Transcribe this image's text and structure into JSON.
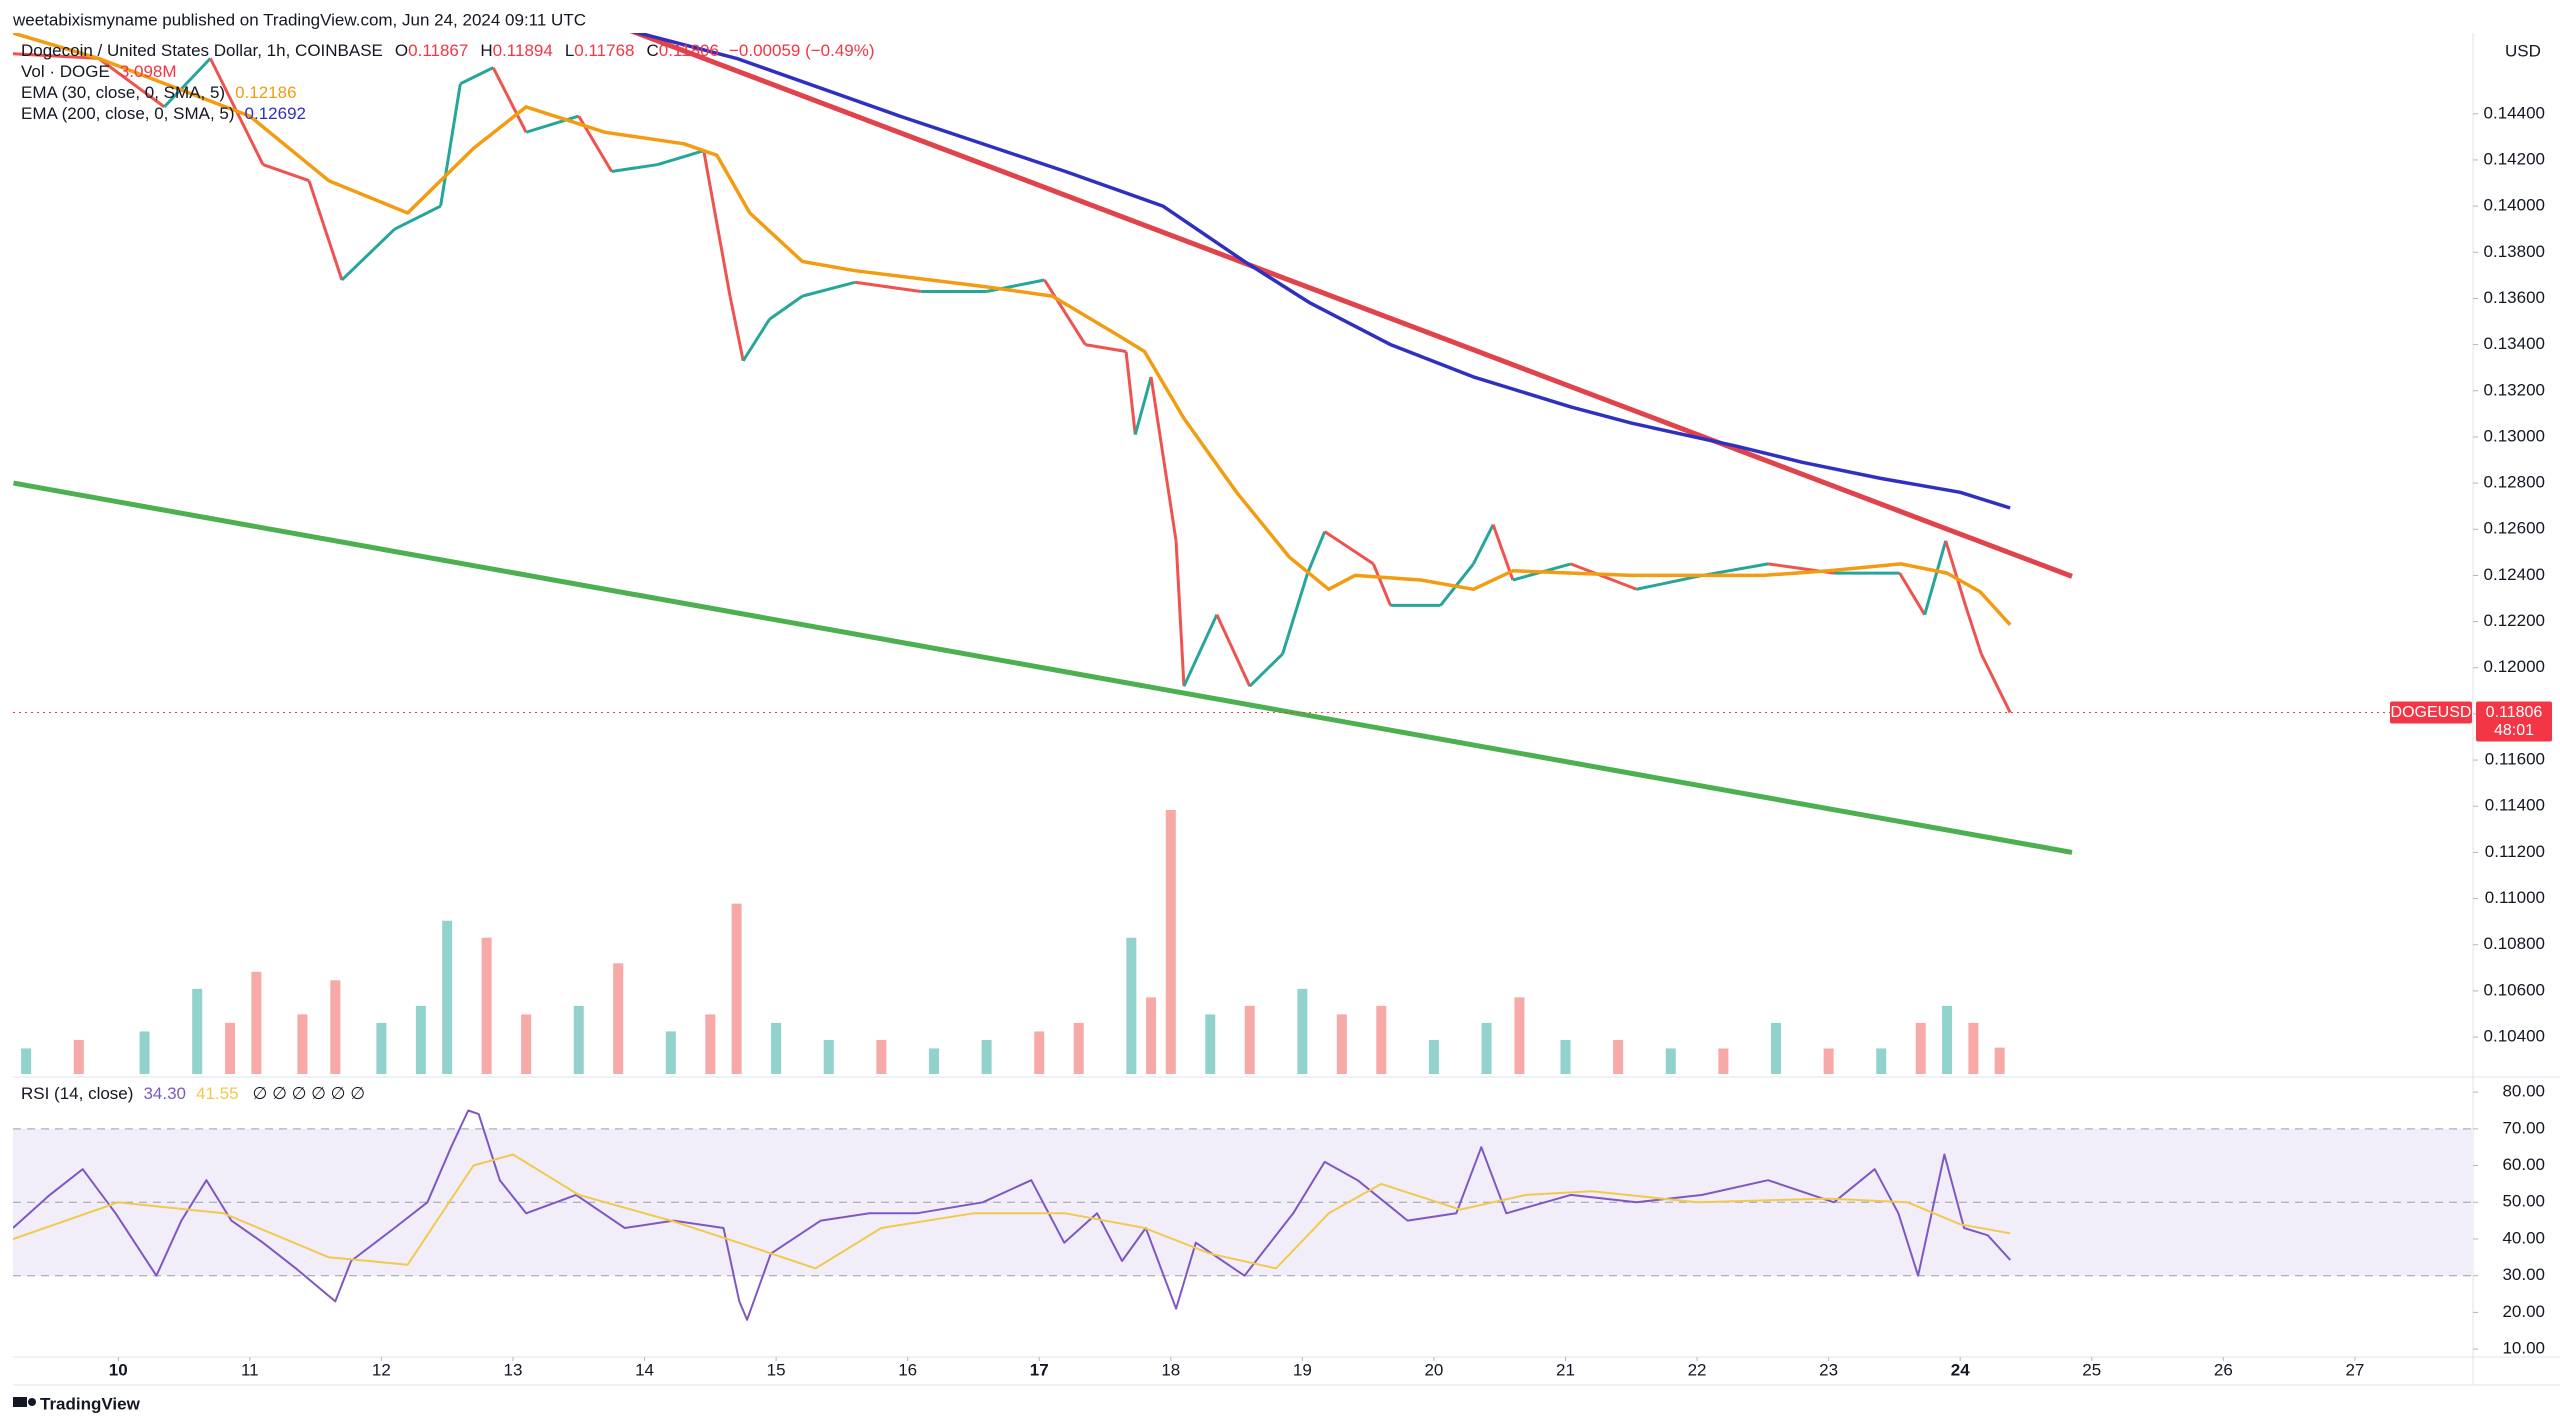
{
  "header": {
    "publisher": "weetabixismyname published on TradingView.com, Jun 24, 2024 09:11 UTC"
  },
  "footer": {
    "brand": "TradingView"
  },
  "chart_data": [
    {
      "type": "line",
      "title": "Dogecoin / United States Dollar, 1h, COINBASE",
      "ohlc": [
        [
          "O",
          "0.11867"
        ],
        [
          "H",
          "0.11894"
        ],
        [
          "L",
          "0.11768"
        ],
        [
          "C",
          "0.11806"
        ]
      ],
      "change": "−0.00059 (−0.49%)",
      "y_unit": "USD",
      "xlim": [
        9.2,
        27.89
      ],
      "xticks": [
        10,
        11,
        12,
        13,
        14,
        15,
        16,
        17,
        18,
        19,
        20,
        21,
        22,
        23,
        24,
        25,
        26,
        27
      ],
      "xticks_bold": [
        10,
        17,
        24
      ],
      "ylim": [
        0.1024,
        0.1475
      ],
      "yticks": [
        {
          "value": 0.104,
          "label": "0.10400"
        },
        {
          "value": 0.106,
          "label": "0.10600"
        },
        {
          "value": 0.108,
          "label": "0.10800"
        },
        {
          "value": 0.11,
          "label": "0.11000"
        },
        {
          "value": 0.112,
          "label": "0.11200"
        },
        {
          "value": 0.114,
          "label": "0.11400"
        },
        {
          "value": 0.116,
          "label": "0.11600"
        },
        {
          "value": 0.118,
          "label": "0.11800"
        },
        {
          "value": 0.12,
          "label": "0.12000"
        },
        {
          "value": 0.122,
          "label": "0.12200"
        },
        {
          "value": 0.124,
          "label": "0.12400"
        },
        {
          "value": 0.126,
          "label": "0.12600"
        },
        {
          "value": 0.128,
          "label": "0.12800"
        },
        {
          "value": 0.13,
          "label": "0.13000"
        },
        {
          "value": 0.132,
          "label": "0.13200"
        },
        {
          "value": 0.134,
          "label": "0.13400"
        },
        {
          "value": 0.136,
          "label": "0.13600"
        },
        {
          "value": 0.138,
          "label": "0.13800"
        },
        {
          "value": 0.14,
          "label": "0.14000"
        },
        {
          "value": 0.142,
          "label": "0.14200"
        },
        {
          "value": 0.144,
          "label": "0.14400"
        }
      ],
      "series": [
        {
          "name": "DOGEUSD",
          "up_color": "#26a69a",
          "down_color": "#ef5350",
          "value_label": "0.11806",
          "countdown": "48:01",
          "tag_color": "#f23645",
          "x": [
            9.2,
            9.85,
            10.35,
            10.7,
            11.1,
            11.45,
            11.7,
            12.1,
            12.45,
            12.6,
            12.85,
            13.1,
            13.5,
            13.75,
            14.1,
            14.45,
            14.65,
            14.75,
            14.95,
            15.2,
            15.6,
            16.1,
            16.6,
            17.04,
            17.35,
            17.66,
            17.73,
            17.85,
            18.04,
            18.1,
            18.35,
            18.6,
            18.85,
            19.04,
            19.17,
            19.54,
            19.67,
            20.05,
            20.3,
            20.45,
            20.6,
            21.04,
            21.54,
            22.04,
            22.54,
            23.04,
            23.54,
            23.73,
            23.89,
            24.04,
            24.16,
            24.38
          ],
          "values": [
            0.1466,
            0.1464,
            0.1443,
            0.1464,
            0.1418,
            0.1411,
            0.1368,
            0.139,
            0.14,
            0.1453,
            0.146,
            0.1432,
            0.1439,
            0.1415,
            0.1418,
            0.1424,
            0.1361,
            0.1333,
            0.1351,
            0.1361,
            0.1367,
            0.1363,
            0.1363,
            0.1368,
            0.134,
            0.1337,
            0.1301,
            0.1326,
            0.1255,
            0.1192,
            0.1223,
            0.1192,
            0.1206,
            0.1241,
            0.1259,
            0.1245,
            0.1227,
            0.1227,
            0.1245,
            0.1262,
            0.1238,
            0.1245,
            0.1234,
            0.124,
            0.1245,
            0.1241,
            0.1241,
            0.1223,
            0.1255,
            0.1227,
            0.1206,
            0.11806
          ]
        },
        {
          "name": "EMA (30, close, 0, SMA, 5)",
          "color": "#f39c12",
          "value_label": "0.12186",
          "x": [
            9.2,
            9.85,
            11,
            11.6,
            12.2,
            12.7,
            13.1,
            13.7,
            14.3,
            14.55,
            14.8,
            15.2,
            15.6,
            16.6,
            17.1,
            17.6,
            17.8,
            18.1,
            18.5,
            18.9,
            19.2,
            19.4,
            19.9,
            20.3,
            20.6,
            21.05,
            21.5,
            22.05,
            22.5,
            23.0,
            23.55,
            23.9,
            24.15,
            24.38
          ],
          "values": [
            0.1475,
            0.1464,
            0.1439,
            0.1411,
            0.1397,
            0.1425,
            0.1443,
            0.1432,
            0.1427,
            0.1422,
            0.1397,
            0.1376,
            0.1372,
            0.1365,
            0.1361,
            0.1344,
            0.1337,
            0.1308,
            0.1276,
            0.1248,
            0.1234,
            0.124,
            0.1238,
            0.1234,
            0.1242,
            0.1241,
            0.124,
            0.124,
            0.124,
            0.1242,
            0.1245,
            0.1241,
            0.1233,
            0.12186
          ]
        },
        {
          "name": "EMA (200, close, 0, SMA, 5)",
          "color": "#3030c0",
          "value_label": "0.12692",
          "x": [
            13.89,
            14.7,
            15.94,
            17.2,
            17.94,
            18.56,
            19.06,
            19.67,
            20.3,
            21.04,
            21.5,
            22.3,
            22.8,
            23.4,
            24.0,
            24.38
          ],
          "values": [
            0.1476,
            0.1464,
            0.1439,
            0.1415,
            0.14,
            0.1376,
            0.1358,
            0.134,
            0.1326,
            0.1313,
            0.1306,
            0.1296,
            0.1289,
            0.1282,
            0.1276,
            0.12692
          ]
        }
      ],
      "trendlines": [
        {
          "color": "#e0434b",
          "x": [
            13.89,
            24.85
          ],
          "values": [
            0.14761,
            0.12396
          ]
        },
        {
          "color": "#4caf50",
          "x": [
            9.204,
            24.85
          ],
          "values": [
            0.128,
            0.112
          ]
        }
      ],
      "volume": {
        "name": "Vol · DOGE",
        "value_label": "3.098M",
        "x": [
          9.3,
          9.7,
          10.2,
          10.6,
          10.85,
          11.05,
          11.4,
          11.65,
          12.0,
          12.3,
          12.5,
          12.8,
          13.1,
          13.5,
          13.8,
          14.2,
          14.5,
          14.7,
          15.0,
          15.4,
          15.8,
          16.2,
          16.6,
          17.0,
          17.3,
          17.7,
          17.85,
          18.0,
          18.3,
          18.6,
          19.0,
          19.3,
          19.6,
          20.0,
          20.4,
          20.65,
          21.0,
          21.4,
          21.8,
          22.2,
          22.6,
          23.0,
          23.4,
          23.7,
          23.9,
          24.1,
          24.3
        ],
        "values": [
          3,
          4,
          5,
          10,
          6,
          12,
          7,
          11,
          6,
          8,
          18,
          16,
          7,
          8,
          13,
          5,
          7,
          20,
          6,
          4,
          4,
          3,
          4,
          5,
          6,
          16,
          9,
          31,
          7,
          8,
          10,
          7,
          8,
          4,
          6,
          9,
          4,
          4,
          3,
          3,
          6,
          3,
          3,
          6,
          8,
          6,
          3.098
        ],
        "colors": [
          "#26a69a",
          "#ef5350",
          "#26a69a",
          "#26a69a",
          "#ef5350",
          "#ef5350",
          "#ef5350",
          "#ef5350",
          "#26a69a",
          "#26a69a",
          "#26a69a",
          "#ef5350",
          "#ef5350",
          "#26a69a",
          "#ef5350",
          "#26a69a",
          "#ef5350",
          "#ef5350",
          "#26a69a",
          "#26a69a",
          "#ef5350",
          "#26a69a",
          "#26a69a",
          "#ef5350",
          "#ef5350",
          "#26a69a",
          "#ef5350",
          "#ef5350",
          "#26a69a",
          "#ef5350",
          "#26a69a",
          "#ef5350",
          "#ef5350",
          "#26a69a",
          "#26a69a",
          "#ef5350",
          "#26a69a",
          "#ef5350",
          "#26a69a",
          "#ef5350",
          "#26a69a",
          "#ef5350",
          "#26a69a",
          "#ef5350",
          "#26a69a",
          "#ef5350",
          "#ef5350"
        ]
      }
    },
    {
      "type": "line",
      "title": "RSI (14, close)",
      "status_icons": "∅ ∅ ∅ ∅ ∅ ∅",
      "xlim": [
        9.2,
        27.89
      ],
      "ylim": [
        8.4,
        83.3
      ],
      "yticks": [
        {
          "value": 10,
          "label": "10.00"
        },
        {
          "value": 20,
          "label": "20.00"
        },
        {
          "value": 30,
          "label": "30.00"
        },
        {
          "value": 40,
          "label": "40.00"
        },
        {
          "value": 50,
          "label": "50.00"
        },
        {
          "value": 60,
          "label": "60.00"
        },
        {
          "value": 70,
          "label": "70.00"
        },
        {
          "value": 80,
          "label": "80.00"
        }
      ],
      "bands": {
        "upper": 70,
        "middle": 50,
        "lower": 30,
        "color": "#7e57c2"
      },
      "series": [
        {
          "color": "#7e57c2",
          "value_label": "34.30",
          "x": [
            9.2,
            9.48,
            9.73,
            9.98,
            10.29,
            10.48,
            10.67,
            10.86,
            11.1,
            11.35,
            11.65,
            11.77,
            12.1,
            12.35,
            12.53,
            12.66,
            12.74,
            12.9,
            13.1,
            13.48,
            13.85,
            14.22,
            14.6,
            14.72,
            14.78,
            14.96,
            15.34,
            15.71,
            16.07,
            16.57,
            16.94,
            17.19,
            17.44,
            17.63,
            17.81,
            18.04,
            18.19,
            18.56,
            18.93,
            19.17,
            19.42,
            19.8,
            20.17,
            20.36,
            20.55,
            21.04,
            21.54,
            22.04,
            22.54,
            23.04,
            23.35,
            23.53,
            23.68,
            23.88,
            24.03,
            24.21,
            24.38
          ],
          "values": [
            43,
            52,
            59,
            47,
            30,
            45,
            56,
            45,
            39,
            32,
            23,
            34,
            43,
            50,
            65,
            75,
            74,
            56,
            47,
            52,
            43,
            45,
            43,
            23,
            18,
            36,
            45,
            47,
            47,
            50,
            56,
            39,
            47,
            34,
            43,
            21,
            39,
            30,
            47,
            61,
            56,
            45,
            47,
            65,
            47,
            52,
            50,
            52,
            56,
            50,
            59,
            47,
            30,
            63,
            43,
            41,
            34.3
          ]
        },
        {
          "color": "#f2c94c",
          "value_label": "41.55",
          "x": [
            9.2,
            10,
            10.8,
            11.6,
            12.2,
            12.7,
            13,
            13.5,
            14.2,
            14.8,
            15.3,
            15.8,
            16.5,
            17.2,
            17.8,
            18.3,
            18.8,
            19.2,
            19.6,
            20.2,
            20.7,
            21.2,
            22,
            23,
            23.6,
            24,
            24.38
          ],
          "values": [
            40,
            50,
            47,
            35,
            33,
            60,
            63,
            52,
            45,
            38,
            32,
            43,
            47,
            47,
            43,
            36,
            32,
            47,
            55,
            48,
            52,
            53,
            50,
            51,
            50,
            44,
            41.55
          ]
        }
      ]
    }
  ]
}
